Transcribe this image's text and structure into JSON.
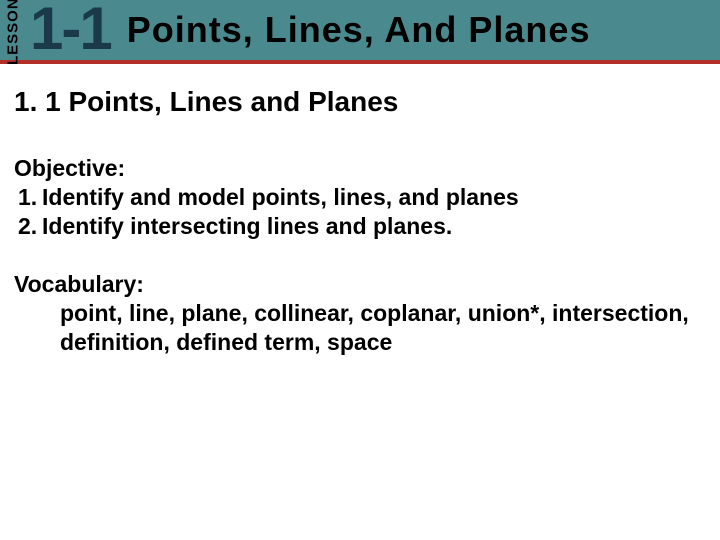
{
  "header": {
    "bg_color": "#4a8a8f",
    "underline_color": "#b33028",
    "lesson_label": "LESSON",
    "lesson_number": "1-1",
    "lesson_number_color": "#1a3a4a",
    "title": "Points, Lines, And Planes"
  },
  "body": {
    "section_title": "1. 1 Points, Lines and Planes",
    "objective": {
      "heading": "Objective:",
      "items": [
        {
          "n": "1.",
          "text": "Identify and model points, lines, and planes"
        },
        {
          "n": "2.",
          "text": "Identify intersecting lines and planes."
        }
      ]
    },
    "vocabulary": {
      "heading": "Vocabulary:",
      "text": "point, line, plane, collinear, coplanar, union*, intersection, definition, defined term, space"
    }
  },
  "typography": {
    "title_fontsize_pt": 27,
    "section_title_fontsize_pt": 21,
    "body_fontsize_pt": 17,
    "font_family": "Arial",
    "body_weight": "bold"
  }
}
